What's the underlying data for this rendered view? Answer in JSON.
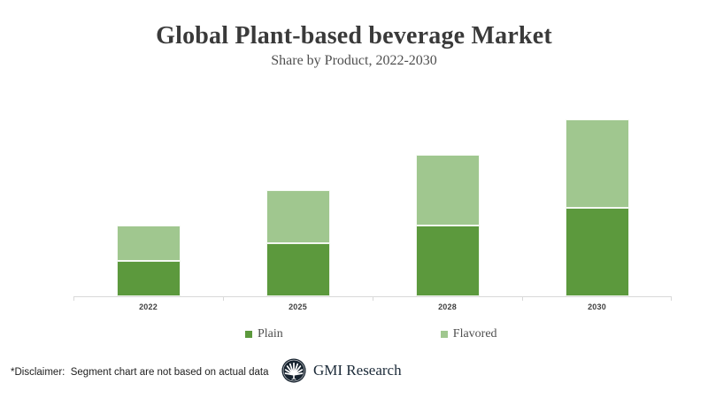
{
  "header": {
    "title": "Global Plant-based beverage Market",
    "subtitle": "Share by Product, 2022-2030"
  },
  "chart_data": {
    "type": "bar",
    "stacked": true,
    "categories": [
      "2022",
      "2025",
      "2028",
      "2030"
    ],
    "series": [
      {
        "name": "Plain",
        "color": "#5C993D",
        "values": [
          40,
          60,
          80,
          100
        ]
      },
      {
        "name": "Flavored",
        "color": "#A0C78F",
        "values": [
          40,
          60,
          80,
          100
        ]
      }
    ],
    "ylim": [
      0,
      235
    ],
    "grid": false,
    "y_axis_visible": false,
    "axis_color": "#D9D9D9",
    "legend_position": "bottom"
  },
  "footer": {
    "disclaimer": "*Disclaimer:  Segment chart are not based on actual data",
    "brand": "GMI Research"
  }
}
